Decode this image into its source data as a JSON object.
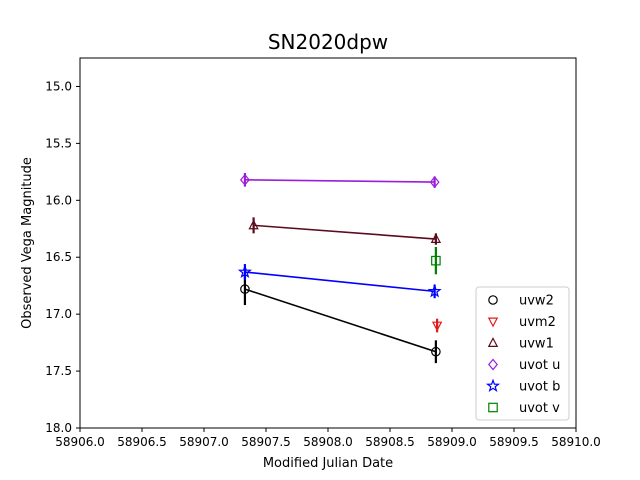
{
  "chart_data": {
    "type": "scatter",
    "title": "SN2020dpw",
    "xlabel": "Modified Julian Date",
    "ylabel": "Observed Vega Magnitude",
    "xlim": [
      58906.0,
      58910.0
    ],
    "ylim": [
      14.75,
      18.0
    ],
    "y_inverted": true,
    "xticks": [
      58906.0,
      58906.5,
      58907.0,
      58907.5,
      58908.0,
      58908.5,
      58909.0,
      58909.5,
      58910.0
    ],
    "xtick_labels": [
      "58906.0",
      "58906.5",
      "58907.0",
      "58907.5",
      "58908.0",
      "58908.5",
      "58909.0",
      "58909.5",
      "58910.0"
    ],
    "yticks": [
      15.0,
      15.5,
      16.0,
      16.5,
      17.0,
      17.5,
      18.0
    ],
    "ytick_labels": [
      "15.0",
      "15.5",
      "16.0",
      "16.5",
      "17.0",
      "17.5",
      "18.0"
    ],
    "grid": false,
    "legend_position": "lower-right",
    "series": [
      {
        "name": "uvw2",
        "marker": "circle",
        "color": "#000000",
        "line": true,
        "points": [
          {
            "x": 58907.33,
            "y": 16.78,
            "err": 0.14
          },
          {
            "x": 58908.87,
            "y": 17.33,
            "err": 0.1
          }
        ]
      },
      {
        "name": "uvm2",
        "marker": "triangle-down",
        "color": "#e31a1c",
        "line": false,
        "points": [
          {
            "x": 58908.88,
            "y": 17.1,
            "err": 0.06
          }
        ]
      },
      {
        "name": "uvw1",
        "marker": "triangle-up",
        "color": "#5c0a1e",
        "line": true,
        "points": [
          {
            "x": 58907.4,
            "y": 16.22,
            "err": 0.07
          },
          {
            "x": 58908.87,
            "y": 16.34,
            "err": 0.05
          }
        ]
      },
      {
        "name": "uvot u",
        "marker": "diamond",
        "color": "#9b1fd8",
        "line": true,
        "points": [
          {
            "x": 58907.33,
            "y": 15.82,
            "err": 0.06
          },
          {
            "x": 58908.86,
            "y": 15.84,
            "err": 0.05
          }
        ]
      },
      {
        "name": "uvot b",
        "marker": "star",
        "color": "#0000ff",
        "line": true,
        "points": [
          {
            "x": 58907.33,
            "y": 16.63,
            "err": 0.07
          },
          {
            "x": 58908.86,
            "y": 16.8,
            "err": 0.06
          }
        ]
      },
      {
        "name": "uvot v",
        "marker": "square",
        "color": "#008000",
        "line": false,
        "points": [
          {
            "x": 58908.87,
            "y": 16.53,
            "err": 0.12
          }
        ]
      }
    ]
  }
}
